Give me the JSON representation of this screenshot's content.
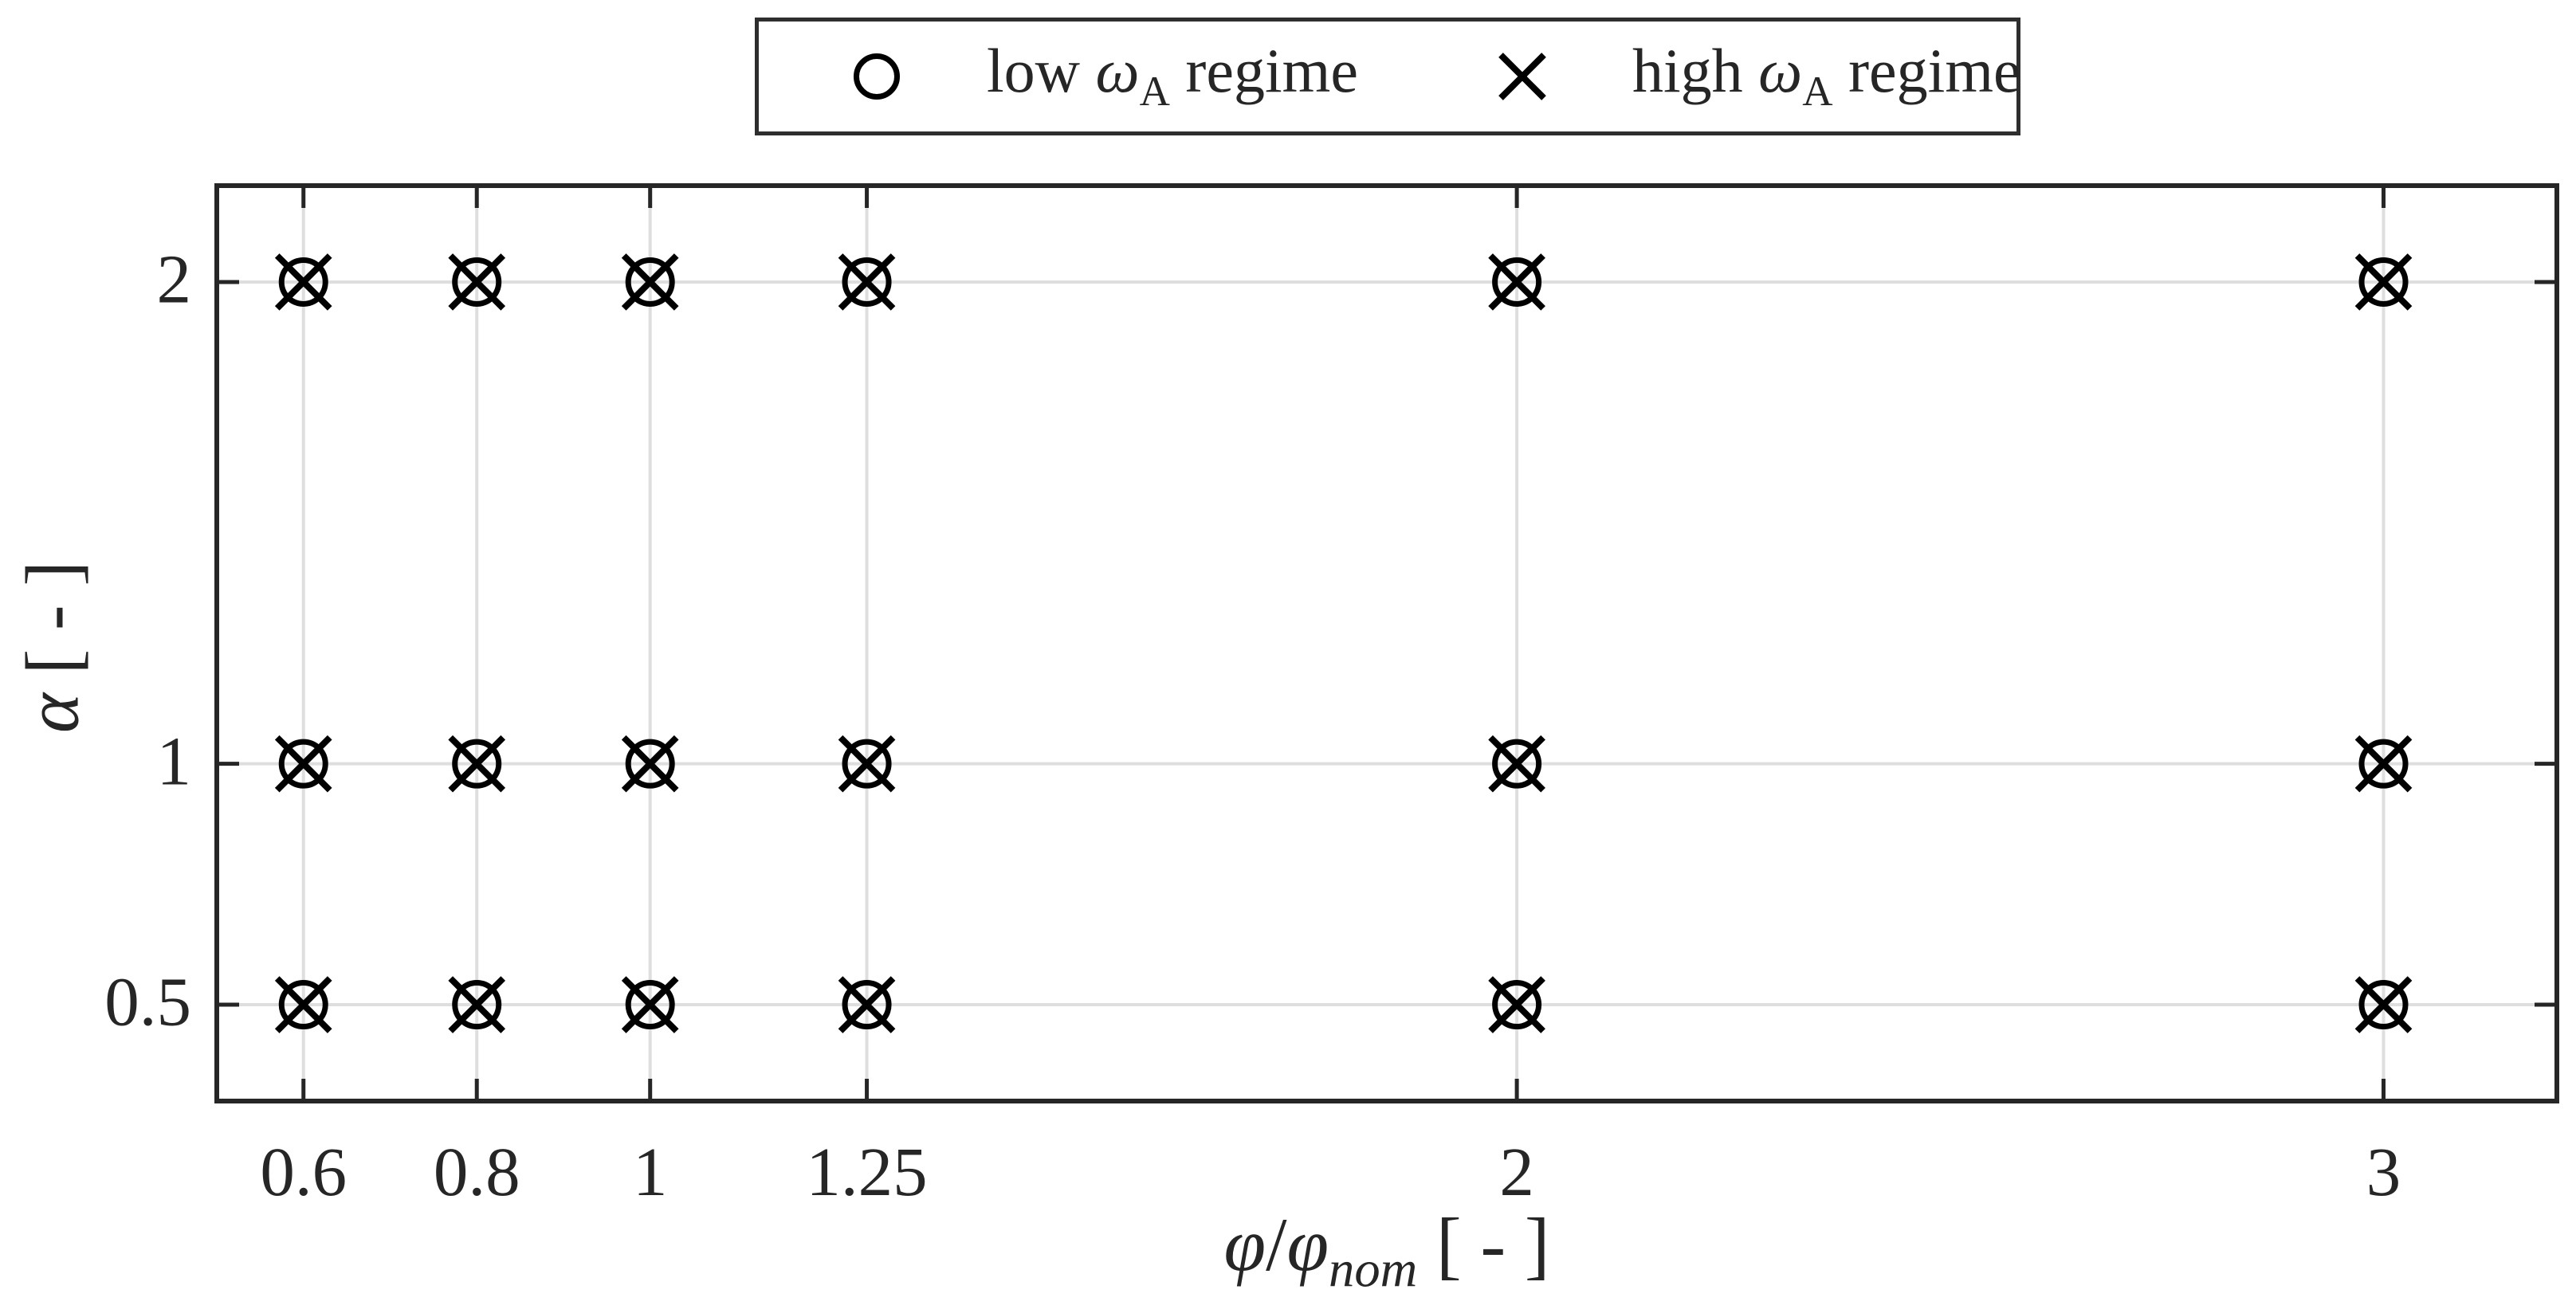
{
  "figure": {
    "background": "#ffffff",
    "axis_color": "#262626",
    "grid_color": "#dedede",
    "marker_color": "#000000",
    "text_color": "#262626",
    "legend_border_color": "#2e2e2e"
  },
  "legend": {
    "items": [
      {
        "marker": "circle",
        "pre": "low ",
        "symbol": "ω",
        "subscript": "A",
        "post": " regime"
      },
      {
        "marker": "x",
        "pre": "high ",
        "symbol": "ω",
        "subscript": "A",
        "post": " regime"
      }
    ]
  },
  "axes": {
    "xlabel": {
      "numerator": "φ",
      "slash": "/",
      "denominator": "φ",
      "subscript": "nom",
      "units": " [ - ]"
    },
    "ylabel": {
      "symbol": "α",
      "units": " [ - ]"
    }
  },
  "chart_data": {
    "type": "scatter",
    "title": "",
    "xlabel": "φ/φ_nom [ - ]",
    "ylabel": "α [ - ]",
    "xlim": [
      0.5,
      3.2
    ],
    "ylim": [
      0.3,
      2.2
    ],
    "xticks": [
      0.6,
      0.8,
      1,
      1.25,
      2,
      3
    ],
    "xtick_labels": [
      "0.6",
      "0.8",
      "1",
      "1.25",
      "2",
      "3"
    ],
    "yticks": [
      0.5,
      1,
      2
    ],
    "ytick_labels": [
      "0.5",
      "1",
      "2"
    ],
    "grid": true,
    "legend_position": "above-plot-centered",
    "series": [
      {
        "name": "low ω_A regime",
        "marker": "circle",
        "points": [
          [
            0.6,
            0.5
          ],
          [
            0.6,
            1
          ],
          [
            0.6,
            2
          ],
          [
            0.8,
            0.5
          ],
          [
            0.8,
            1
          ],
          [
            0.8,
            2
          ],
          [
            1,
            0.5
          ],
          [
            1,
            1
          ],
          [
            1,
            2
          ],
          [
            1.25,
            0.5
          ],
          [
            1.25,
            1
          ],
          [
            1.25,
            2
          ],
          [
            2,
            0.5
          ],
          [
            2,
            1
          ],
          [
            2,
            2
          ],
          [
            3,
            0.5
          ],
          [
            3,
            1
          ],
          [
            3,
            2
          ]
        ]
      },
      {
        "name": "high ω_A regime",
        "marker": "x",
        "points": [
          [
            0.6,
            0.5
          ],
          [
            0.6,
            1
          ],
          [
            0.6,
            2
          ],
          [
            0.8,
            0.5
          ],
          [
            0.8,
            1
          ],
          [
            0.8,
            2
          ],
          [
            1,
            0.5
          ],
          [
            1,
            1
          ],
          [
            1,
            2
          ],
          [
            1.25,
            0.5
          ],
          [
            1.25,
            1
          ],
          [
            1.25,
            2
          ],
          [
            2,
            0.5
          ],
          [
            2,
            1
          ],
          [
            2,
            2
          ],
          [
            3,
            0.5
          ],
          [
            3,
            1
          ],
          [
            3,
            2
          ]
        ]
      }
    ]
  }
}
